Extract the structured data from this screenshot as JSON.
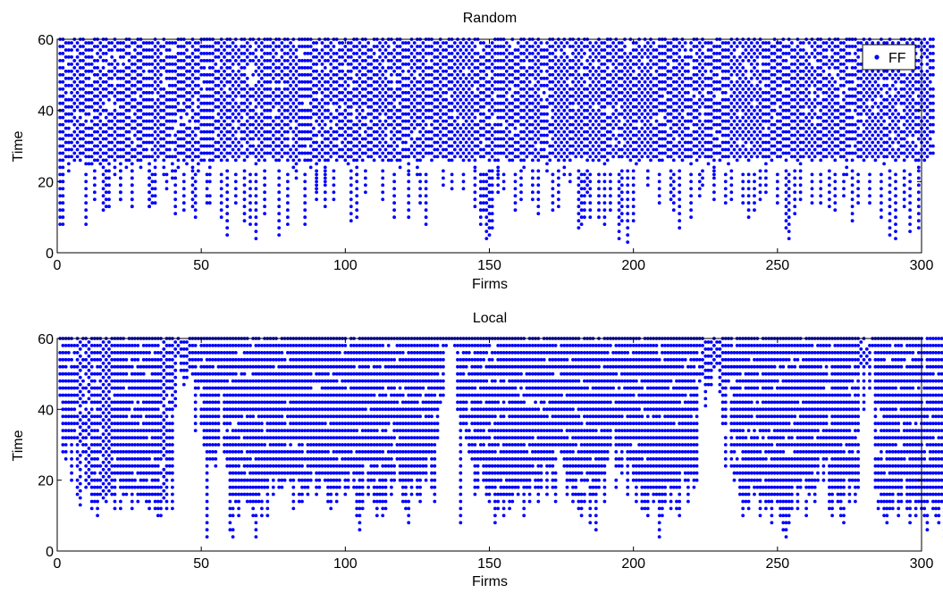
{
  "chart_data": [
    {
      "type": "scatter",
      "title": "Random",
      "xlabel": "Firms",
      "ylabel": "Time",
      "xlim": [
        0,
        300
      ],
      "ylim": [
        0,
        60
      ],
      "xticks": [
        0,
        50,
        100,
        150,
        200,
        250,
        300
      ],
      "yticks": [
        0,
        20,
        40,
        60
      ],
      "grid": false,
      "legend": {
        "position": "top-right",
        "entries": [
          "FF"
        ]
      },
      "series": [
        {
          "name": "FF",
          "color": "#0000ff",
          "marker": "dot",
          "note_points": "each firm x (1..300) is plotted at every integer time from its first value below up to 60, except for scattered gaps",
          "first_time_per_firm": [
            24,
            8,
            27,
            23,
            27,
            26,
            27,
            26,
            28,
            25,
            25,
            25,
            26,
            26,
            25,
            12,
            26,
            13,
            27,
            22,
            27,
            15,
            27,
            24,
            26,
            13,
            27,
            26,
            24,
            27,
            27,
            13,
            27,
            14,
            27,
            28,
            22,
            27,
            27,
            21,
            27,
            24,
            28,
            26,
            25,
            27,
            24,
            27,
            23,
            26,
            26,
            28,
            14,
            26,
            27,
            27,
            26,
            27,
            26,
            28,
            27,
            26,
            27,
            28,
            26,
            27,
            28,
            28,
            25,
            26,
            27,
            26,
            28,
            28,
            27,
            26,
            26,
            27,
            28,
            26,
            27,
            24,
            21,
            26,
            28,
            26,
            26,
            24,
            27,
            15,
            26,
            27,
            20,
            26,
            27,
            28,
            26,
            27,
            27,
            26,
            25,
            27,
            26,
            22,
            27,
            26,
            28,
            27,
            27,
            26,
            28,
            27,
            26,
            27,
            26,
            26,
            27,
            26,
            24,
            27,
            27,
            23,
            28,
            27,
            22,
            26,
            27,
            28,
            28,
            26,
            27,
            27,
            28,
            27,
            27,
            26,
            26,
            27,
            28,
            27,
            26,
            27,
            26,
            27,
            24,
            28,
            27,
            27,
            28,
            26,
            27,
            26,
            22,
            28,
            28,
            27,
            26,
            26,
            27,
            27,
            26,
            24,
            27,
            28,
            26,
            27,
            26,
            27,
            27,
            23,
            26,
            28,
            27,
            26,
            27,
            22,
            27,
            26,
            28,
            27,
            28,
            27,
            28,
            26,
            27,
            26,
            27,
            26,
            27,
            25,
            26,
            28,
            27,
            28,
            27,
            27,
            28,
            27,
            26,
            27,
            25,
            26,
            27,
            28,
            27,
            26,
            27,
            27,
            26,
            26,
            28,
            27,
            27,
            26,
            28,
            27,
            26,
            27,
            27,
            25,
            28,
            26,
            27,
            28,
            27,
            25,
            27,
            22,
            28,
            26,
            27,
            27,
            25,
            28,
            27,
            26,
            27,
            28,
            27,
            26,
            27,
            28,
            27,
            28,
            27,
            25,
            27,
            26,
            28,
            27,
            27,
            28,
            26,
            28,
            27,
            27,
            26,
            25,
            27,
            28,
            27,
            26,
            27,
            28,
            26,
            27,
            27,
            28,
            27,
            26,
            28,
            27,
            27,
            22,
            28,
            26,
            28,
            27,
            27,
            26,
            27,
            28,
            27,
            26,
            27,
            28,
            25,
            27,
            28,
            27,
            26,
            27,
            28,
            26,
            27,
            28,
            27,
            26,
            24,
            27,
            26,
            27,
            28,
            28
          ],
          "isolated_low_points": [
            [
              1,
              8
            ],
            [
              2,
              20
            ],
            [
              10,
              8
            ],
            [
              13,
              15
            ],
            [
              17,
              13
            ],
            [
              22,
              15
            ],
            [
              26,
              13
            ],
            [
              32,
              13
            ],
            [
              33,
              14
            ],
            [
              38,
              18
            ],
            [
              41,
              11
            ],
            [
              44,
              12
            ],
            [
              47,
              13
            ],
            [
              48,
              10
            ],
            [
              52,
              14
            ],
            [
              57,
              10
            ],
            [
              59,
              5
            ],
            [
              62,
              14
            ],
            [
              65,
              9
            ],
            [
              67,
              8
            ],
            [
              69,
              4
            ],
            [
              72,
              11
            ],
            [
              77,
              5
            ],
            [
              80,
              8
            ],
            [
              86,
              8
            ],
            [
              90,
              18
            ],
            [
              93,
              13
            ],
            [
              96,
              15
            ],
            [
              102,
              9
            ],
            [
              104,
              10
            ],
            [
              107,
              17
            ],
            [
              113,
              15
            ],
            [
              117,
              10
            ],
            [
              122,
              10
            ],
            [
              126,
              14
            ],
            [
              128,
              8
            ],
            [
              134,
              19
            ],
            [
              137,
              18
            ],
            [
              141,
              18
            ],
            [
              145,
              13
            ],
            [
              147,
              8
            ],
            [
              148,
              12
            ],
            [
              149,
              4
            ],
            [
              150,
              5
            ],
            [
              151,
              7
            ],
            [
              153,
              17
            ],
            [
              155,
              18
            ],
            [
              159,
              12
            ],
            [
              161,
              15
            ],
            [
              165,
              15
            ],
            [
              167,
              11
            ],
            [
              172,
              12
            ],
            [
              174,
              13
            ],
            [
              178,
              20
            ],
            [
              181,
              7
            ],
            [
              182,
              8
            ],
            [
              183,
              10
            ],
            [
              184,
              17
            ],
            [
              185,
              10
            ],
            [
              188,
              10
            ],
            [
              190,
              8
            ],
            [
              192,
              12
            ],
            [
              195,
              4
            ],
            [
              196,
              9
            ],
            [
              198,
              3
            ],
            [
              200,
              9
            ],
            [
              205,
              19
            ],
            [
              209,
              14
            ],
            [
              213,
              15
            ],
            [
              214,
              12
            ],
            [
              216,
              7
            ],
            [
              220,
              10
            ],
            [
              223,
              16
            ],
            [
              224,
              19
            ],
            [
              228,
              15
            ],
            [
              232,
              14
            ],
            [
              234,
              15
            ],
            [
              238,
              14
            ],
            [
              240,
              10
            ],
            [
              242,
              12
            ],
            [
              244,
              15
            ],
            [
              246,
              17
            ],
            [
              250,
              14
            ],
            [
              253,
              7
            ],
            [
              254,
              4
            ],
            [
              256,
              11
            ],
            [
              258,
              15
            ],
            [
              262,
              14
            ],
            [
              265,
              14
            ],
            [
              268,
              13
            ],
            [
              270,
              12
            ],
            [
              273,
              16
            ],
            [
              276,
              9
            ],
            [
              278,
              14
            ],
            [
              282,
              14
            ],
            [
              286,
              10
            ],
            [
              289,
              5
            ],
            [
              291,
              4
            ],
            [
              294,
              13
            ],
            [
              296,
              6
            ],
            [
              299,
              7
            ]
          ]
        }
      ]
    },
    {
      "type": "scatter",
      "title": "Local",
      "xlabel": "Firms",
      "ylabel": "Time",
      "xlim": [
        0,
        300
      ],
      "ylim": [
        0,
        60
      ],
      "xticks": [
        0,
        50,
        100,
        150,
        200,
        250,
        300
      ],
      "yticks": [
        0,
        20,
        40,
        60
      ],
      "grid": false,
      "legend": null,
      "series": [
        {
          "name": "FF",
          "color": "#0000ff",
          "marker": "dot",
          "first_time_per_firm": [
            44,
            28,
            26,
            32,
            20,
            32,
            16,
            13,
            28,
            18,
            19,
            12,
            14,
            10,
            16,
            15,
            14,
            17,
            16,
            12,
            22,
            12,
            16,
            16,
            18,
            12,
            18,
            14,
            16,
            16,
            14,
            12,
            16,
            12,
            10,
            10,
            15,
            12,
            22,
            12,
            14,
            10,
            28,
            20,
            22,
            20,
            32,
            34,
            46,
            36,
            30,
            4,
            26,
            26,
            24,
            30,
            46,
            28,
            24,
            6,
            4,
            14,
            10,
            16,
            16,
            14,
            14,
            10,
            4,
            14,
            10,
            18,
            10,
            22,
            16,
            22,
            18,
            18,
            20,
            22,
            20,
            12,
            22,
            14,
            14,
            18,
            16,
            20,
            24,
            16,
            18,
            22,
            20,
            14,
            12,
            18,
            14,
            18,
            22,
            16,
            18,
            24,
            18,
            10,
            6,
            12,
            26,
            16,
            20,
            14,
            10,
            14,
            10,
            12,
            22,
            16,
            20,
            26,
            20,
            14,
            12,
            8,
            16,
            22,
            16,
            14,
            22,
            20,
            28,
            18,
            14,
            32,
            34,
            44,
            56,
            60,
            60,
            58,
            40,
            8,
            36,
            32,
            28,
            26,
            16,
            18,
            26,
            20,
            16,
            14,
            18,
            8,
            12,
            16,
            10,
            16,
            12,
            14,
            18,
            16,
            20,
            10,
            18,
            14,
            22,
            18,
            14,
            18,
            26,
            16,
            24,
            18,
            14,
            30,
            28,
            24,
            16,
            20,
            14,
            16,
            12,
            10,
            14,
            20,
            8,
            16,
            6,
            18,
            22,
            14,
            26,
            30,
            36,
            18,
            24,
            22,
            30,
            16,
            26,
            20,
            14,
            20,
            12,
            12,
            10,
            18,
            14,
            16,
            4,
            10,
            14,
            20,
            12,
            18,
            12,
            10,
            24,
            20,
            14,
            22,
            18,
            20,
            14,
            22,
            26,
            32,
            34,
            44,
            46,
            24,
            36,
            24,
            48,
            24,
            20,
            22,
            16,
            10,
            14,
            12,
            20,
            16,
            18,
            10,
            16,
            12,
            14,
            8,
            16,
            14,
            10,
            6,
            4,
            8,
            12,
            20,
            12,
            18,
            22,
            10,
            16,
            18,
            14,
            20,
            28,
            20,
            26,
            12,
            10,
            18,
            14,
            10,
            8,
            22,
            14,
            20,
            14,
            18,
            10,
            12,
            16,
            24,
            16,
            18,
            12,
            14,
            10,
            8,
            12,
            12,
            18,
            10,
            14,
            22,
            12,
            8,
            16,
            10,
            14,
            12,
            10,
            6,
            16,
            12,
            10,
            8,
            14,
            4,
            10,
            12,
            6,
            12,
            28,
            20,
            36,
            40
          ],
          "gap_firms": [
            [
              41,
              47
            ],
            [
              133,
              137
            ],
            [
              223,
              230
            ],
            [
              279,
              283
            ]
          ]
        }
      ]
    }
  ],
  "axes_text": {
    "top_title": "Random",
    "bottom_title": "Local",
    "xlabel": "Firms",
    "ylabel": "Time",
    "legend_label": "FF"
  }
}
